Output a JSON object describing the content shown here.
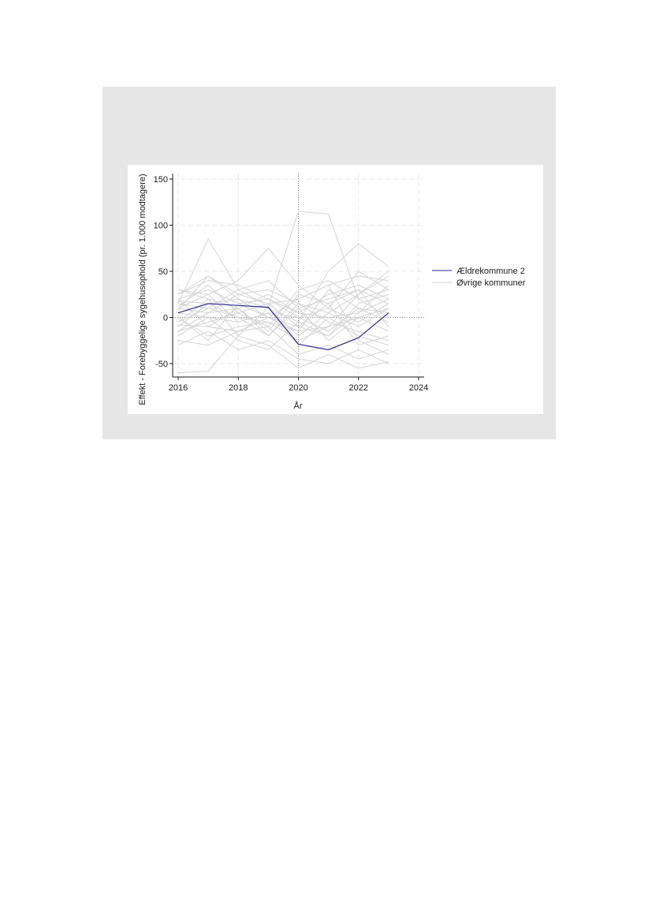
{
  "chart_data": {
    "type": "line",
    "xlabel": "År",
    "ylabel": "Effekt - Forebyggelige sygehusophold (pr. 1.000 modtagere)",
    "xlim": [
      2016,
      2024
    ],
    "ylim": [
      -65,
      155
    ],
    "xticks": [
      "2016",
      "2018",
      "2020",
      "2022",
      "2024"
    ],
    "yticks": [
      "150",
      "100",
      "50",
      "0",
      "-50"
    ],
    "reference_lines": {
      "x": 2020,
      "y": 0
    },
    "grid": true,
    "legend_position": "right",
    "legend": [
      "Ældrekommune 2",
      "Øvrige kommuner"
    ],
    "highlight_series": {
      "name": "Ældrekommune 2",
      "color": "#2e2a8f",
      "x": [
        2016,
        2017,
        2018,
        2019,
        2020,
        2021,
        2022,
        2023
      ],
      "values": [
        5,
        15,
        13,
        11,
        -29,
        -35,
        -22,
        5
      ]
    },
    "other_series_color": "#d4d4d4",
    "other_series": [
      {
        "name": "Øvrige kommuner",
        "x": [
          2016,
          2017,
          2018,
          2019,
          2020,
          2021,
          2022,
          2023
        ],
        "values": [
          [
            15,
            85,
            30,
            12,
            115,
            112,
            20,
            30
          ],
          [
            10,
            25,
            40,
            75,
            35,
            10,
            -5,
            15
          ],
          [
            -60,
            -58,
            -20,
            -30,
            -55,
            -40,
            -55,
            -48
          ],
          [
            25,
            45,
            20,
            10,
            -5,
            50,
            80,
            55
          ],
          [
            -5,
            10,
            0,
            -20,
            10,
            20,
            30,
            -10
          ],
          [
            20,
            30,
            15,
            0,
            -10,
            -20,
            5,
            20
          ],
          [
            -15,
            -5,
            5,
            15,
            20,
            35,
            45,
            40
          ],
          [
            0,
            -20,
            -10,
            -5,
            -25,
            -10,
            0,
            10
          ],
          [
            30,
            20,
            10,
            25,
            5,
            0,
            -20,
            -30
          ],
          [
            -25,
            -30,
            -15,
            -10,
            -40,
            -30,
            -45,
            -35
          ],
          [
            10,
            5,
            25,
            30,
            15,
            5,
            25,
            45
          ],
          [
            5,
            0,
            -5,
            5,
            0,
            -15,
            10,
            5
          ],
          [
            -10,
            15,
            20,
            0,
            -15,
            30,
            10,
            -5
          ],
          [
            20,
            -10,
            10,
            -15,
            25,
            15,
            -30,
            -20
          ],
          [
            -20,
            0,
            -25,
            -35,
            -5,
            -20,
            15,
            25
          ],
          [
            25,
            40,
            35,
            20,
            0,
            10,
            50,
            30
          ],
          [
            -30,
            -15,
            -35,
            -25,
            -45,
            -50,
            -35,
            -50
          ],
          [
            12,
            35,
            5,
            -10,
            30,
            40,
            20,
            0
          ],
          [
            -5,
            20,
            -20,
            10,
            -20,
            5,
            -10,
            10
          ],
          [
            15,
            10,
            30,
            40,
            10,
            -25,
            0,
            -15
          ],
          [
            0,
            -25,
            15,
            20,
            5,
            25,
            35,
            20
          ],
          [
            30,
            25,
            -5,
            5,
            -30,
            0,
            5,
            35
          ],
          [
            -15,
            5,
            10,
            -20,
            15,
            -5,
            -15,
            -25
          ],
          [
            8,
            45,
            25,
            15,
            -10,
            15,
            30,
            15
          ],
          [
            -8,
            -10,
            -15,
            0,
            20,
            35,
            -25,
            -40
          ],
          [
            18,
            15,
            0,
            -5,
            -15,
            -10,
            25,
            50
          ]
        ]
      }
    ]
  }
}
